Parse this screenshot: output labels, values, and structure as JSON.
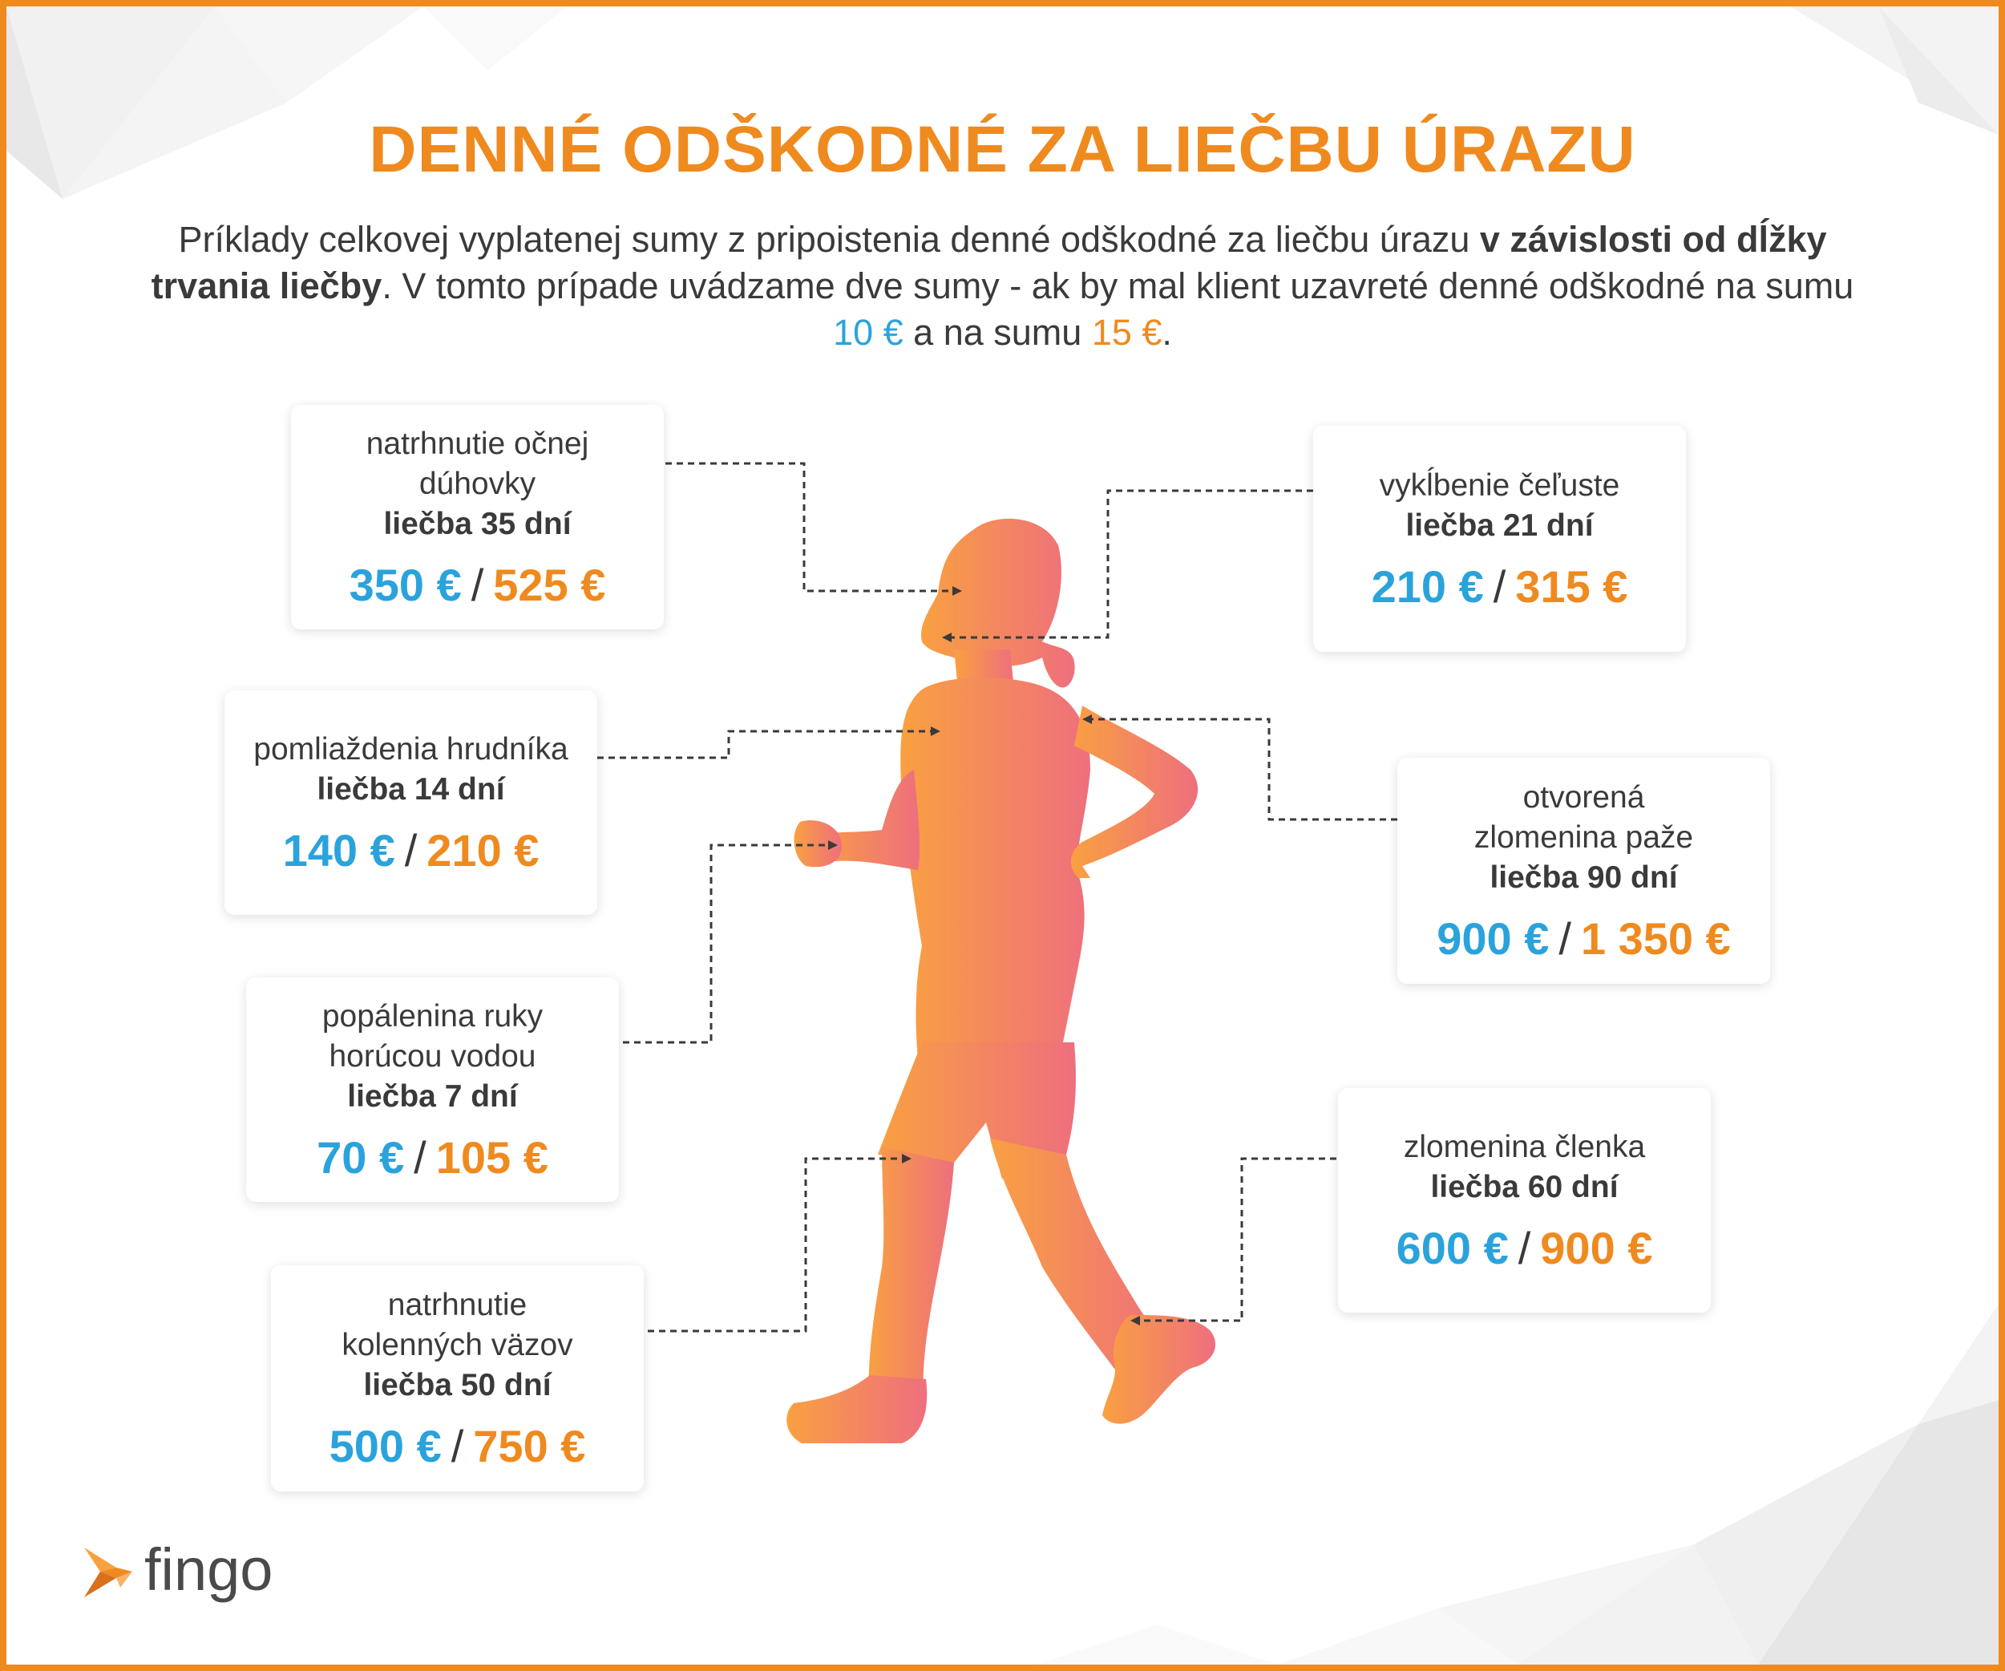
{
  "title": "DENNÉ ODŠKODNÉ ZA LIEČBU ÚRAZU",
  "intro": {
    "part1": "Príklady celkovej vyplatenej sumy z pripoistenia denné odškodné za liečbu úrazu ",
    "bold": "v závislosti od dĺžky trvania liečby",
    "part2": ". V tomto prípade uvádzame dve sumy - ak by mal klient uzavreté denné odškodné na sumu ",
    "amount10": "10 €",
    "part3": " a na sumu ",
    "amount15": "15 €",
    "part4": "."
  },
  "colors": {
    "orange": "#ef8a1f",
    "blue": "#2aa3dc",
    "text": "#3a3a3a",
    "runner_start": "#f9a041",
    "runner_end": "#ee6f7e"
  },
  "cards": [
    {
      "id": "iris",
      "desc1": "natrhnutie očnej",
      "desc2": "dúhovky",
      "days": "liečba 35 dní",
      "p10": "350 €",
      "p15": "525 €"
    },
    {
      "id": "jaw",
      "desc1": "vykĺbenie čeľuste",
      "desc2": "",
      "days": "liečba 21 dní",
      "p10": "210 €",
      "p15": "315 €"
    },
    {
      "id": "chest",
      "desc1": "pomliaždenia hrudníka",
      "desc2": "",
      "days": "liečba 14 dní",
      "p10": "140 €",
      "p15": "210 €"
    },
    {
      "id": "arm",
      "desc1": "otvorená",
      "desc2": "zlomenina paže",
      "days": "liečba 90 dní",
      "p10": "900 €",
      "p15": "1 350 €"
    },
    {
      "id": "hand",
      "desc1": "popálenina ruky",
      "desc2": "horúcou vodou",
      "days": "liečba 7 dní",
      "p10": "70 €",
      "p15": "105 €"
    },
    {
      "id": "ankle",
      "desc1": "zlomenina členka",
      "desc2": "",
      "days": "liečba 60 dní",
      "p10": "600 €",
      "p15": "900 €"
    },
    {
      "id": "knee",
      "desc1": "natrhnutie",
      "desc2": "kolenných väzov",
      "days": "liečba 50 dní",
      "p10": "500 €",
      "p15": "750 €"
    }
  ],
  "logo": {
    "text": "fingo"
  }
}
